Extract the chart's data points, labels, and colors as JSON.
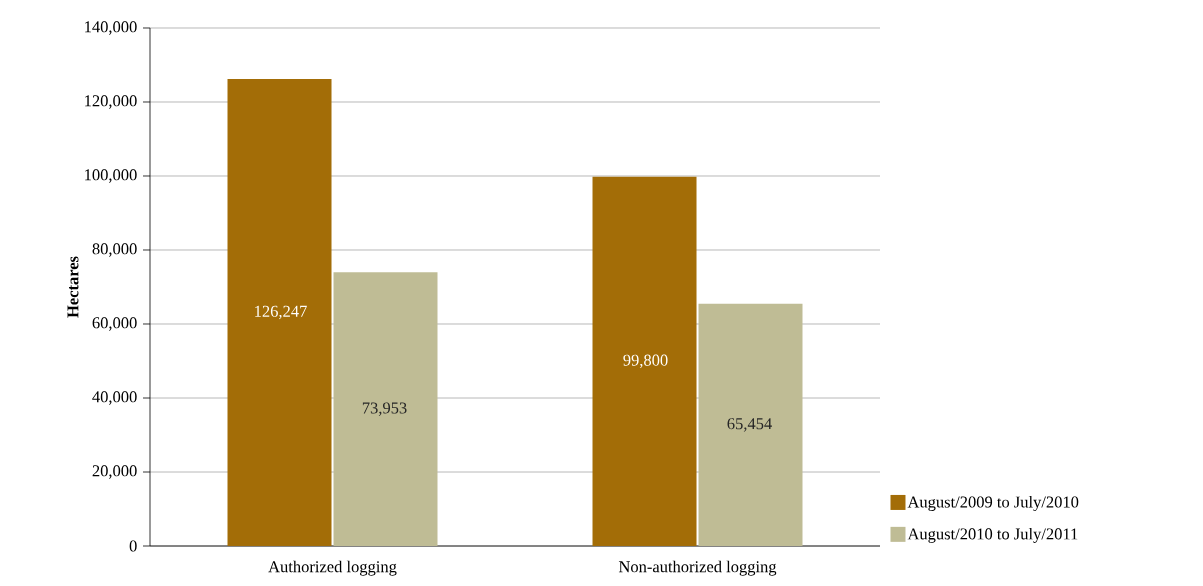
{
  "chart_data": {
    "type": "bar",
    "ylabel": "Hectares",
    "categories": [
      "Authorized logging",
      "Non-authorized logging"
    ],
    "series": [
      {
        "name": "August/2009 to July/2010",
        "color": "#a36d07",
        "values": [
          126247,
          99800
        ],
        "value_labels": [
          "126,247",
          "99,800"
        ]
      },
      {
        "name": "August/2010 to July/2011",
        "color": "#bfbc95",
        "values": [
          73953,
          65454
        ],
        "value_labels": [
          "73,953",
          "65,454"
        ]
      }
    ],
    "ylim": [
      0,
      140000
    ],
    "yticks": [
      0,
      {
        "value": 20000,
        "label": "20,000"
      },
      {
        "value": 40000,
        "label": "40,000"
      },
      {
        "value": 60000,
        "label": "60,000"
      },
      {
        "value": 80000,
        "label": "80,000"
      },
      {
        "value": 100000,
        "label": "100,000"
      },
      {
        "value": 120000,
        "label": "120,000"
      },
      {
        "value": 140000,
        "label": "140,000"
      }
    ],
    "grid": "y",
    "legend": "bottom right"
  }
}
